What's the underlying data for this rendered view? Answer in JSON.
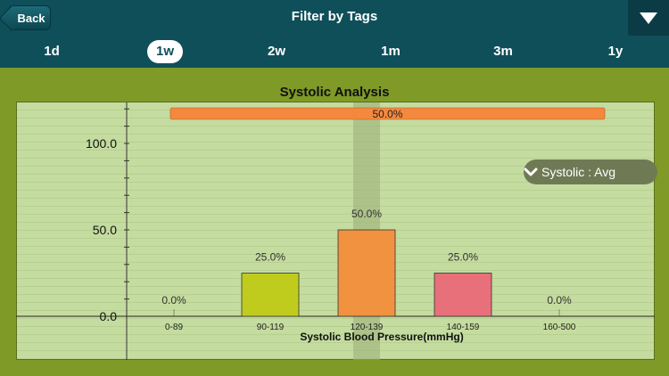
{
  "header": {
    "back_label": "Back",
    "title": "Filter by Tags"
  },
  "tabs": [
    {
      "label": "1d",
      "active": false
    },
    {
      "label": "1w",
      "active": true
    },
    {
      "label": "2w",
      "active": false
    },
    {
      "label": "1m",
      "active": false
    },
    {
      "label": "3m",
      "active": false
    },
    {
      "label": "1y",
      "active": false
    }
  ],
  "dropdown": {
    "label": "Systolic : Avg"
  },
  "colors": {
    "header": "#0f4f5a",
    "background": "#7f9a26",
    "chart_bg": "#c4dca0"
  },
  "chart_data": {
    "type": "bar",
    "title": "Systolic Analysis",
    "xlabel": "Systolic Blood Pressure(mmHg)",
    "ylabel": "",
    "ylim": [
      0,
      100
    ],
    "yticks": [
      "0.0",
      "50.0",
      "100.0"
    ],
    "categories": [
      "0-89",
      "90-119",
      "120-139",
      "140-159",
      "160-500"
    ],
    "values": [
      0,
      25,
      50,
      25,
      0
    ],
    "labels": [
      "0.0%",
      "25.0%",
      "50.0%",
      "25.0%",
      "0.0%"
    ],
    "colors": [
      "#b9cf3a",
      "#bfcc1e",
      "#f09240",
      "#e8707a",
      "#b9cf3a"
    ],
    "highlight_category": "120-139",
    "summary_bar": {
      "value": 50,
      "label": "50.0%",
      "color": "#f4893e"
    }
  }
}
